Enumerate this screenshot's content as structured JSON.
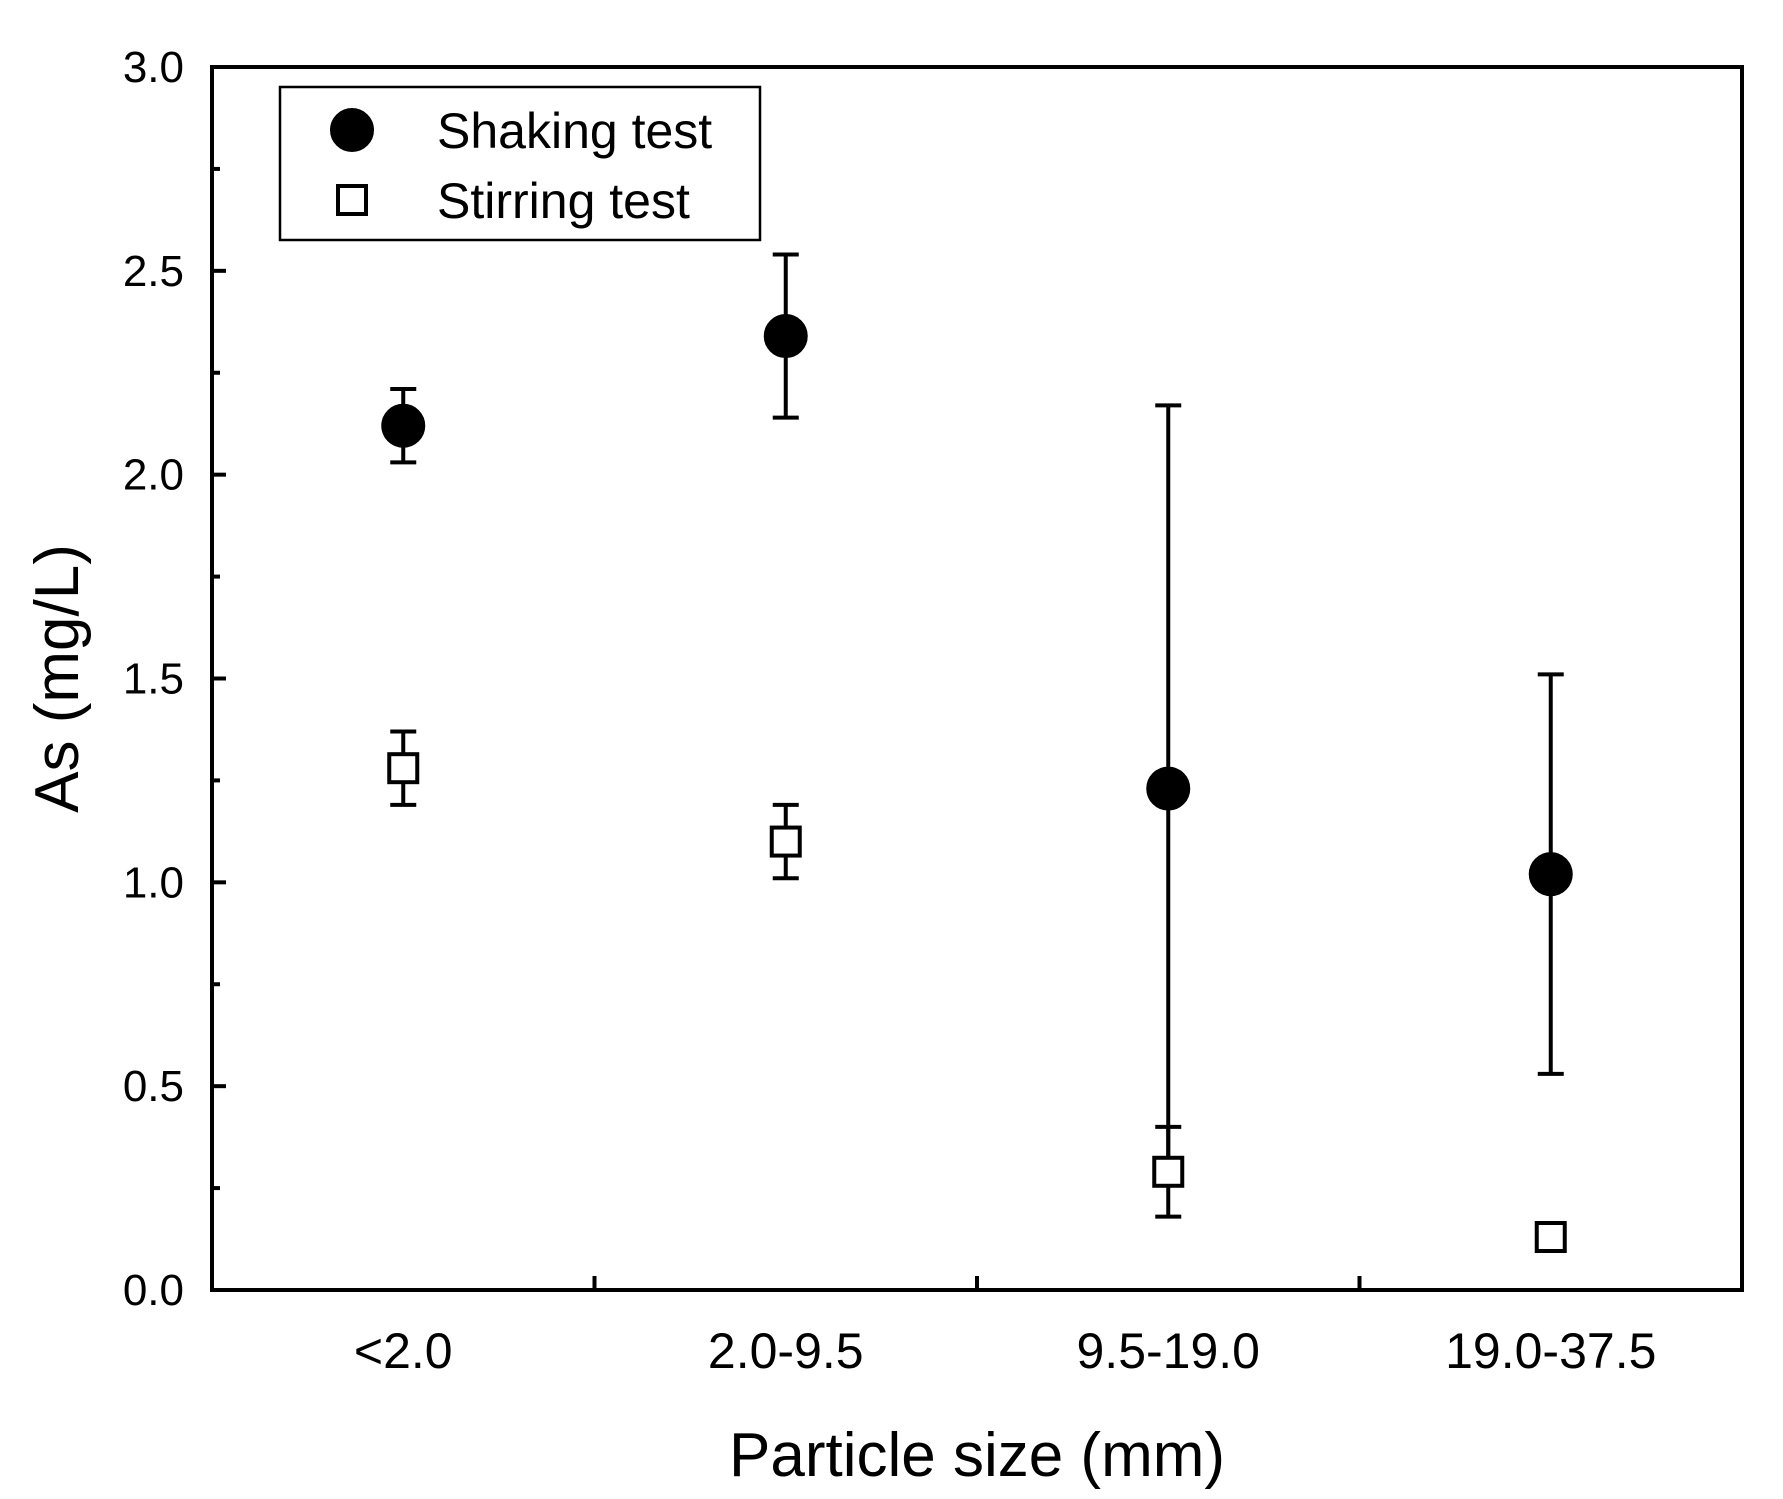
{
  "chart_data": {
    "type": "scatter",
    "title": "",
    "xlabel": "Particle size (mm)",
    "ylabel": "As (mg/L)",
    "categories": [
      "<2.0",
      "2.0-9.5",
      "9.5-19.0",
      "19.0-37.5"
    ],
    "ylim": [
      0,
      3.0
    ],
    "yticks": [
      0.0,
      0.5,
      1.0,
      1.5,
      2.0,
      2.5,
      3.0
    ],
    "ytick_labels": [
      "0.0",
      "0.5",
      "1.0",
      "1.5",
      "2.0",
      "2.5",
      "3.0"
    ],
    "grid": false,
    "legend_position": "top-left",
    "series": [
      {
        "name": "Shaking test",
        "marker": "filled-circle",
        "values": [
          2.12,
          2.34,
          1.23,
          1.02
        ],
        "errors": [
          0.09,
          0.2,
          0.94,
          0.49
        ]
      },
      {
        "name": "Stirring test",
        "marker": "open-square",
        "values": [
          1.28,
          1.1,
          0.29,
          0.13
        ],
        "errors": [
          0.09,
          0.09,
          0.11,
          0.0
        ]
      }
    ]
  },
  "colors": {
    "ink": "#000000",
    "background": "#ffffff"
  }
}
